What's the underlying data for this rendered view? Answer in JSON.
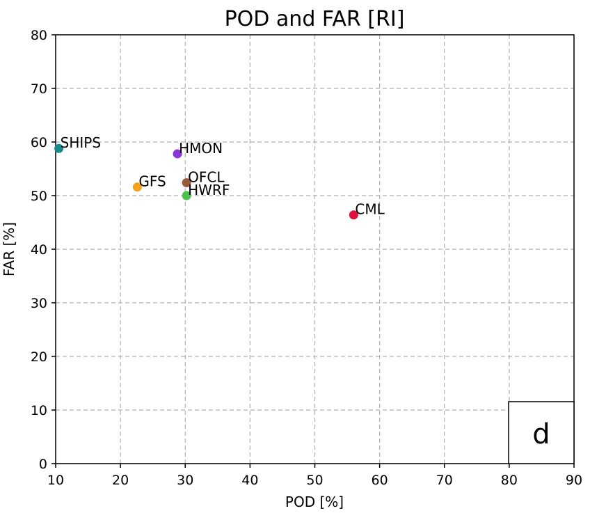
{
  "chart_data": {
    "type": "scatter",
    "title": "POD and FAR [RI]",
    "xlabel": "POD [%]",
    "ylabel": "FAR [%]",
    "xlim": [
      10,
      90
    ],
    "ylim": [
      0,
      80
    ],
    "xticks": [
      10,
      20,
      30,
      40,
      50,
      60,
      70,
      80,
      90
    ],
    "yticks": [
      0,
      10,
      20,
      30,
      40,
      50,
      60,
      70,
      80
    ],
    "grid": true,
    "panel_label": "d",
    "points": [
      {
        "label": "SHIPS",
        "x": 10.5,
        "y": 58.8,
        "color": "#1a8a8a"
      },
      {
        "label": "HMON",
        "x": 28.8,
        "y": 57.8,
        "color": "#8a35d6"
      },
      {
        "label": "GFS",
        "x": 22.6,
        "y": 51.6,
        "color": "#f5a21b"
      },
      {
        "label": "OFCL",
        "x": 30.2,
        "y": 52.4,
        "color": "#9a5a3c"
      },
      {
        "label": "HWRF",
        "x": 30.2,
        "y": 50.0,
        "color": "#4cc04c"
      },
      {
        "label": "CML",
        "x": 56.0,
        "y": 46.4,
        "color": "#e0123f"
      }
    ]
  }
}
